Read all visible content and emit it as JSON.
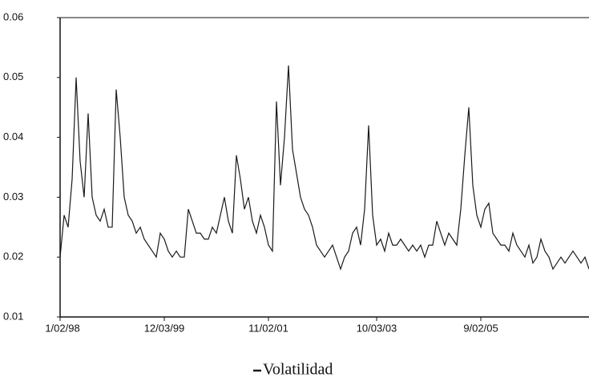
{
  "chart_data": {
    "type": "line",
    "categories": [
      "1/02/98",
      null,
      null,
      null,
      null,
      null,
      null,
      null,
      null,
      null,
      null,
      null,
      null,
      null,
      null,
      null,
      null,
      null,
      null,
      null,
      null,
      null,
      null,
      null,
      null,
      null,
      "12/03/99",
      null,
      null,
      null,
      null,
      null,
      null,
      null,
      null,
      null,
      null,
      null,
      null,
      null,
      null,
      null,
      null,
      null,
      null,
      null,
      null,
      null,
      null,
      null,
      null,
      null,
      "11/02/01",
      null,
      null,
      null,
      null,
      null,
      null,
      null,
      null,
      null,
      null,
      null,
      null,
      null,
      null,
      null,
      null,
      null,
      null,
      null,
      null,
      null,
      null,
      null,
      null,
      null,
      null,
      "10/03/03",
      null,
      null,
      null,
      null,
      null,
      null,
      null,
      null,
      null,
      null,
      null,
      null,
      null,
      null,
      null,
      null,
      null,
      null,
      null,
      null,
      null,
      null,
      null,
      null,
      null,
      "9/02/05",
      null,
      null,
      null,
      null,
      null,
      null,
      null,
      null,
      null,
      null,
      null,
      null,
      null,
      null,
      null,
      null,
      null,
      null,
      null,
      null,
      null,
      null,
      null,
      null,
      null,
      null,
      null
    ],
    "series": [
      {
        "name": "Volatilidad",
        "color": "#1a1a1a",
        "values": [
          0.02,
          0.027,
          0.025,
          0.033,
          0.05,
          0.036,
          0.03,
          0.044,
          0.03,
          0.027,
          0.026,
          0.028,
          0.025,
          0.025,
          0.048,
          0.04,
          0.03,
          0.027,
          0.026,
          0.024,
          0.025,
          0.023,
          0.022,
          0.021,
          0.02,
          0.024,
          0.023,
          0.021,
          0.02,
          0.021,
          0.02,
          0.02,
          0.028,
          0.026,
          0.024,
          0.024,
          0.023,
          0.023,
          0.025,
          0.024,
          0.027,
          0.03,
          0.026,
          0.024,
          0.037,
          0.033,
          0.028,
          0.03,
          0.026,
          0.024,
          0.027,
          0.025,
          0.022,
          0.021,
          0.046,
          0.032,
          0.04,
          0.052,
          0.038,
          0.034,
          0.03,
          0.028,
          0.027,
          0.025,
          0.022,
          0.021,
          0.02,
          0.021,
          0.022,
          0.02,
          0.018,
          0.02,
          0.021,
          0.024,
          0.025,
          0.022,
          0.028,
          0.042,
          0.027,
          0.022,
          0.023,
          0.021,
          0.024,
          0.022,
          0.022,
          0.023,
          0.022,
          0.021,
          0.022,
          0.021,
          0.022,
          0.02,
          0.022,
          0.022,
          0.026,
          0.024,
          0.022,
          0.024,
          0.023,
          0.022,
          0.028,
          0.037,
          0.045,
          0.032,
          0.027,
          0.025,
          0.028,
          0.029,
          0.024,
          0.023,
          0.022,
          0.022,
          0.021,
          0.024,
          0.022,
          0.021,
          0.02,
          0.022,
          0.019,
          0.02,
          0.023,
          0.021,
          0.02,
          0.018,
          0.019,
          0.02,
          0.019,
          0.02,
          0.021,
          0.02,
          0.019,
          0.02,
          0.018
        ]
      }
    ],
    "ylim": [
      0.01,
      0.06
    ],
    "yticks": [
      0.01,
      0.02,
      0.03,
      0.04,
      0.05,
      0.06
    ],
    "grid": false,
    "legend": "bottom"
  }
}
